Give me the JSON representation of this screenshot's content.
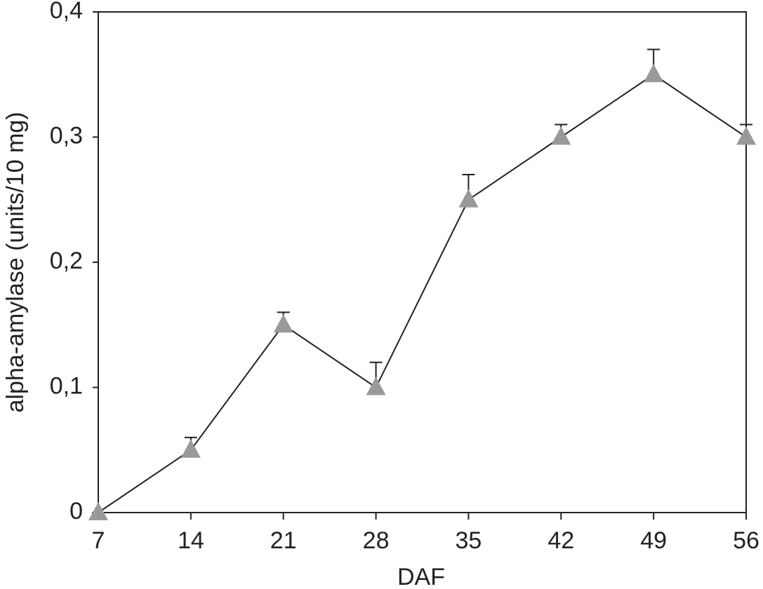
{
  "chart_data": {
    "type": "line",
    "x_label": "DAF",
    "y_label": "alpha-amylase (units/10 mg)",
    "x": [
      7,
      14,
      21,
      28,
      35,
      42,
      49,
      56
    ],
    "values": [
      0,
      0.05,
      0.15,
      0.1,
      0.25,
      0.3,
      0.35,
      0.3
    ],
    "errors": [
      0,
      0.01,
      0.01,
      0.02,
      0.02,
      0.01,
      0.02,
      0.01
    ],
    "color": "#999999",
    "line_color": "#222222",
    "xlim": [
      7,
      56
    ],
    "xticks": [
      7,
      14,
      21,
      28,
      35,
      42,
      49,
      56
    ],
    "ylim": [
      0,
      0.4
    ],
    "yticks": [
      0,
      {
        "value": 0.1,
        "label": "0,1"
      },
      {
        "value": 0.2,
        "label": "0,2"
      },
      {
        "value": 0.3,
        "label": "0,3"
      },
      {
        "value": 0.4,
        "label": "0,4"
      }
    ]
  }
}
